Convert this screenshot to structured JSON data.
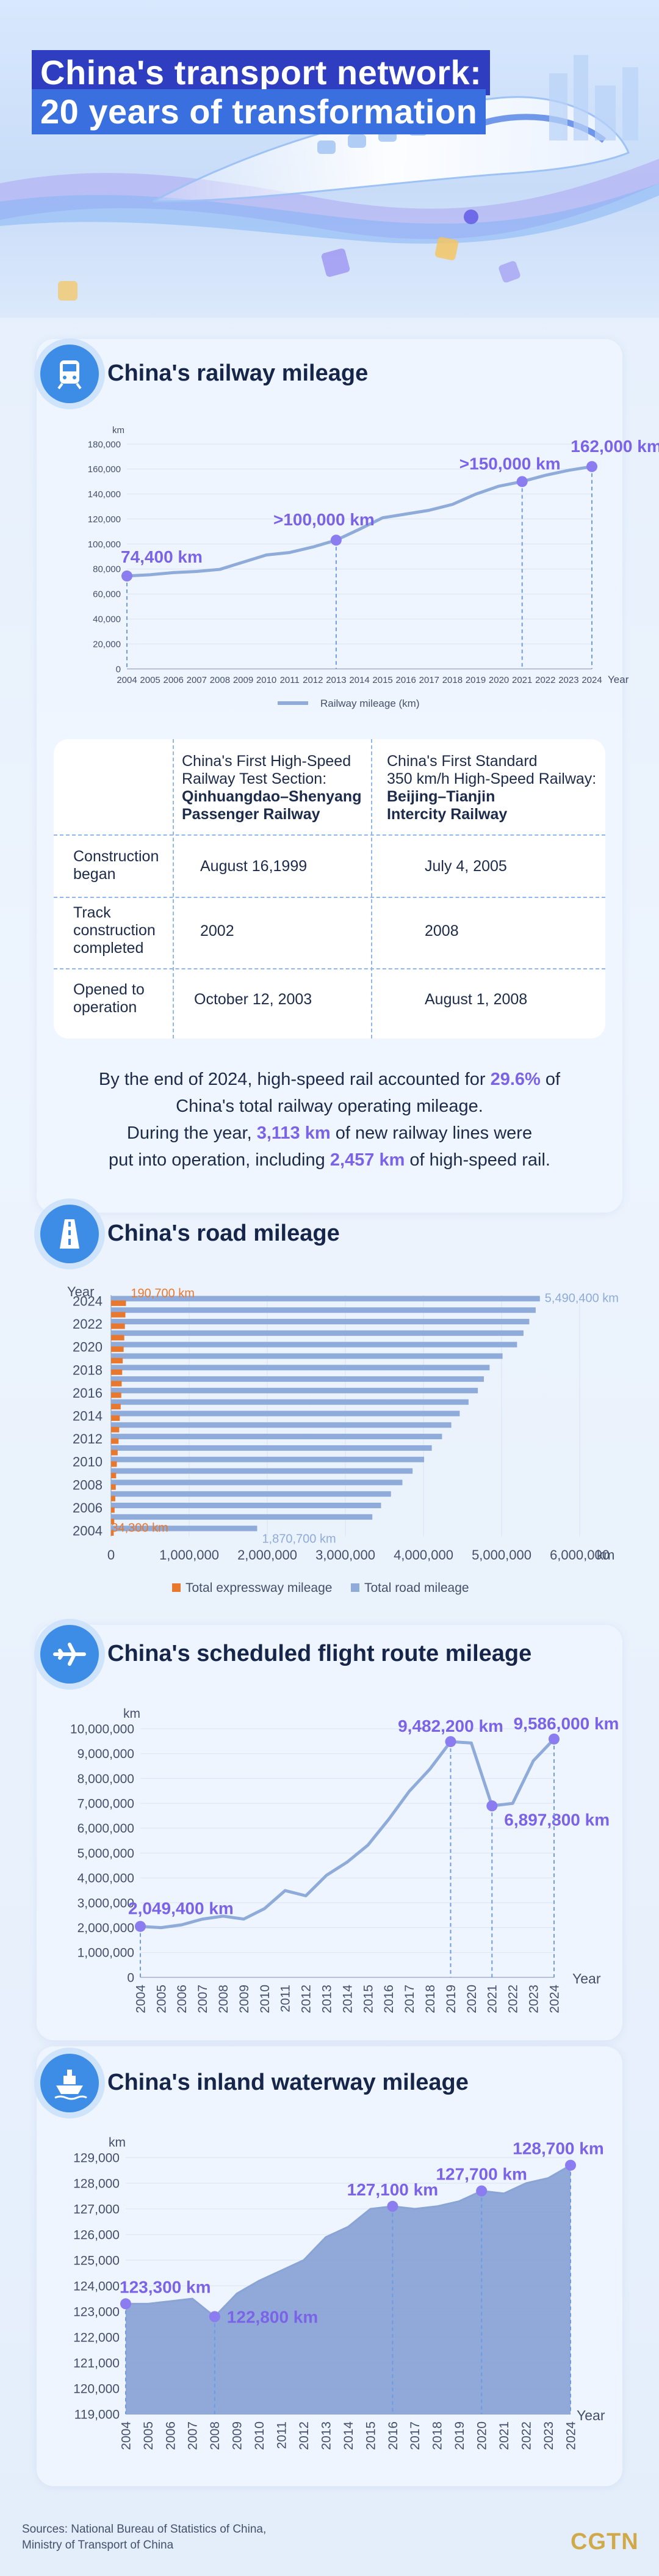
{
  "title": {
    "line1": "China's transport network:",
    "line2": "20 years of transformation"
  },
  "railway": {
    "heading": "China's railway mileage",
    "icon": "train-icon",
    "chart_data": {
      "type": "line",
      "ylabel": "km",
      "xlabel": "Year",
      "legend": [
        "Railway mileage (km)"
      ],
      "legend_position": "bottom-center",
      "x": [
        "2004",
        "2005",
        "2006",
        "2007",
        "2008",
        "2009",
        "2010",
        "2011",
        "2012",
        "2013",
        "2014",
        "2015",
        "2016",
        "2017",
        "2018",
        "2019",
        "2020",
        "2021",
        "2022",
        "2023",
        "2024"
      ],
      "values": [
        74400,
        75400,
        77100,
        78000,
        79700,
        85500,
        91200,
        93200,
        97600,
        103100,
        111800,
        121000,
        124000,
        127000,
        131700,
        139900,
        146300,
        150000,
        155000,
        159000,
        162000
      ],
      "ylim": [
        0,
        180000
      ],
      "yticks": [
        "0",
        "20,000",
        "40,000",
        "60,000",
        "80,000",
        "100,000",
        "120,000",
        "140,000",
        "160,000",
        "180,000"
      ],
      "annotations": [
        {
          "index": 0,
          "label": "74,400 km"
        },
        {
          "index": 9,
          "label": ">100,000 km"
        },
        {
          "index": 17,
          "label": ">150,000 km"
        },
        {
          "index": 20,
          "label": "162,000 km"
        }
      ],
      "color": "#8eabd9"
    },
    "table": {
      "col1_lines": [
        "China's First High-Speed",
        "Railway Test Section:"
      ],
      "col1_bold": [
        "Qinhuangdao–Shenyang",
        "Passenger Railway"
      ],
      "col2_lines": [
        "China's First Standard",
        "350 km/h High-Speed Railway:"
      ],
      "col2_bold": [
        "Beijing–Tianjin",
        "Intercity Railway"
      ],
      "rows": [
        {
          "label": [
            "Construction",
            "began"
          ],
          "v1": "August 16,1999",
          "v2": "July 4, 2005"
        },
        {
          "label": [
            "Track",
            "construction",
            "completed"
          ],
          "v1": "2002",
          "v2": "2008"
        },
        {
          "label": [
            "Opened to",
            "operation"
          ],
          "v1": "October 12, 2003",
          "v2": "August 1, 2008"
        }
      ]
    },
    "summary": {
      "l1a": "By the end of 2024, high-speed rail accounted for ",
      "l1b": "29.6%",
      "l1c": " of",
      "l2": "China's total railway operating mileage.",
      "l3a": "During the year, ",
      "l3b": "3,113 km",
      "l3c": " of new railway lines were",
      "l4a": "put into operation, including ",
      "l4b": "2,457 km",
      "l4c": " of high-speed rail."
    }
  },
  "road": {
    "heading": "China's road mileage",
    "icon": "road-icon",
    "chart_data": {
      "type": "bar",
      "orientation": "horizontal",
      "ylabel": "Year",
      "xlabel": "km",
      "categories": [
        "2004",
        "2005",
        "2006",
        "2007",
        "2008",
        "2009",
        "2010",
        "2011",
        "2012",
        "2013",
        "2014",
        "2015",
        "2016",
        "2017",
        "2018",
        "2019",
        "2020",
        "2021",
        "2022",
        "2023",
        "2024"
      ],
      "ytick_labels": [
        "2004",
        "2006",
        "2008",
        "2010",
        "2012",
        "2014",
        "2016",
        "2018",
        "2020",
        "2022",
        "2024"
      ],
      "xlim": [
        0,
        6000000
      ],
      "xticks": [
        "0",
        "1,000,000",
        "2,000,000",
        "3,000,000",
        "4,000,000",
        "5,000,000",
        "6,000,000"
      ],
      "series": [
        {
          "name": "Total expressway mileage",
          "color": "#e8782e",
          "values": [
            34300,
            41000,
            45300,
            53900,
            60300,
            65100,
            74100,
            84900,
            96200,
            104400,
            111900,
            123500,
            131000,
            136400,
            142600,
            149600,
            161000,
            169100,
            177300,
            183600,
            190700
          ]
        },
        {
          "name": "Total road mileage",
          "color": "#8eabd9",
          "values": [
            1870700,
            3345200,
            3457000,
            3583700,
            3730200,
            3860800,
            4008200,
            4106400,
            4237500,
            4356200,
            4463900,
            4577300,
            4696300,
            4773500,
            4846500,
            5012500,
            5198100,
            5280700,
            5354800,
            5436800,
            5490400
          ]
        }
      ],
      "annotations": [
        {
          "series": 0,
          "index": 20,
          "label": "190,700 km"
        },
        {
          "series": 0,
          "index": 0,
          "label": "34,300 km"
        },
        {
          "series": 1,
          "index": 20,
          "label": "5,490,400 km"
        },
        {
          "series": 1,
          "index": 0,
          "label": "1,870,700 km"
        }
      ],
      "legend_position": "bottom-center"
    }
  },
  "flight": {
    "heading": "China's scheduled flight route mileage",
    "icon": "airplane-icon",
    "chart_data": {
      "type": "line",
      "ylabel": "km",
      "xlabel": "Year",
      "x": [
        "2004",
        "2005",
        "2006",
        "2007",
        "2008",
        "2009",
        "2010",
        "2011",
        "2012",
        "2013",
        "2014",
        "2015",
        "2016",
        "2017",
        "2018",
        "2019",
        "2020",
        "2021",
        "2022",
        "2023",
        "2024"
      ],
      "values": [
        2049400,
        1998500,
        2113500,
        2343000,
        2461800,
        2345100,
        2765000,
        3490600,
        3280100,
        4106000,
        4637200,
        5317200,
        6348100,
        7482800,
        8379800,
        9482200,
        9426300,
        6897800,
        6997500,
        8711000,
        9586000
      ],
      "ylim": [
        0,
        10000000
      ],
      "yticks": [
        "0",
        "1,000,000",
        "2,000,000",
        "3,000,000",
        "4,000,000",
        "5,000,000",
        "6,000,000",
        "7,000,000",
        "8,000,000",
        "9,000,000",
        "10,000,000"
      ],
      "annotations": [
        {
          "index": 0,
          "label": "2,049,400 km"
        },
        {
          "index": 15,
          "label": "9,482,200 km"
        },
        {
          "index": 17,
          "label": "6,897,800 km"
        },
        {
          "index": 20,
          "label": "9,586,000 km"
        }
      ],
      "color": "#8eabd9"
    }
  },
  "waterway": {
    "heading": "China's inland waterway mileage",
    "icon": "ship-icon",
    "chart_data": {
      "type": "area",
      "ylabel": "km",
      "xlabel": "Year",
      "x": [
        "2004",
        "2005",
        "2006",
        "2007",
        "2008",
        "2009",
        "2010",
        "2011",
        "2012",
        "2013",
        "2014",
        "2015",
        "2016",
        "2017",
        "2018",
        "2019",
        "2020",
        "2021",
        "2022",
        "2023",
        "2024"
      ],
      "values": [
        123300,
        123300,
        123400,
        123500,
        122800,
        123700,
        124200,
        124600,
        125000,
        125900,
        126300,
        127000,
        127100,
        127000,
        127100,
        127300,
        127700,
        127600,
        128000,
        128200,
        128700
      ],
      "ylim": [
        119000,
        129000
      ],
      "yticks": [
        "119,000",
        "120,000",
        "121,000",
        "122,000",
        "123,000",
        "124,000",
        "125,000",
        "126,000",
        "127,000",
        "128,000",
        "129,000"
      ],
      "annotations": [
        {
          "index": 0,
          "label": "123,300 km"
        },
        {
          "index": 4,
          "label": "122,800 km"
        },
        {
          "index": 12,
          "label": "127,100 km"
        },
        {
          "index": 16,
          "label": "127,700 km"
        },
        {
          "index": 20,
          "label": "128,700 km"
        }
      ],
      "color": "#8aa4d6"
    }
  },
  "sources": {
    "line1": "Sources: National Bureau of Statistics of China,",
    "line2": "Ministry of Transport of China"
  },
  "logo": "CGTN"
}
